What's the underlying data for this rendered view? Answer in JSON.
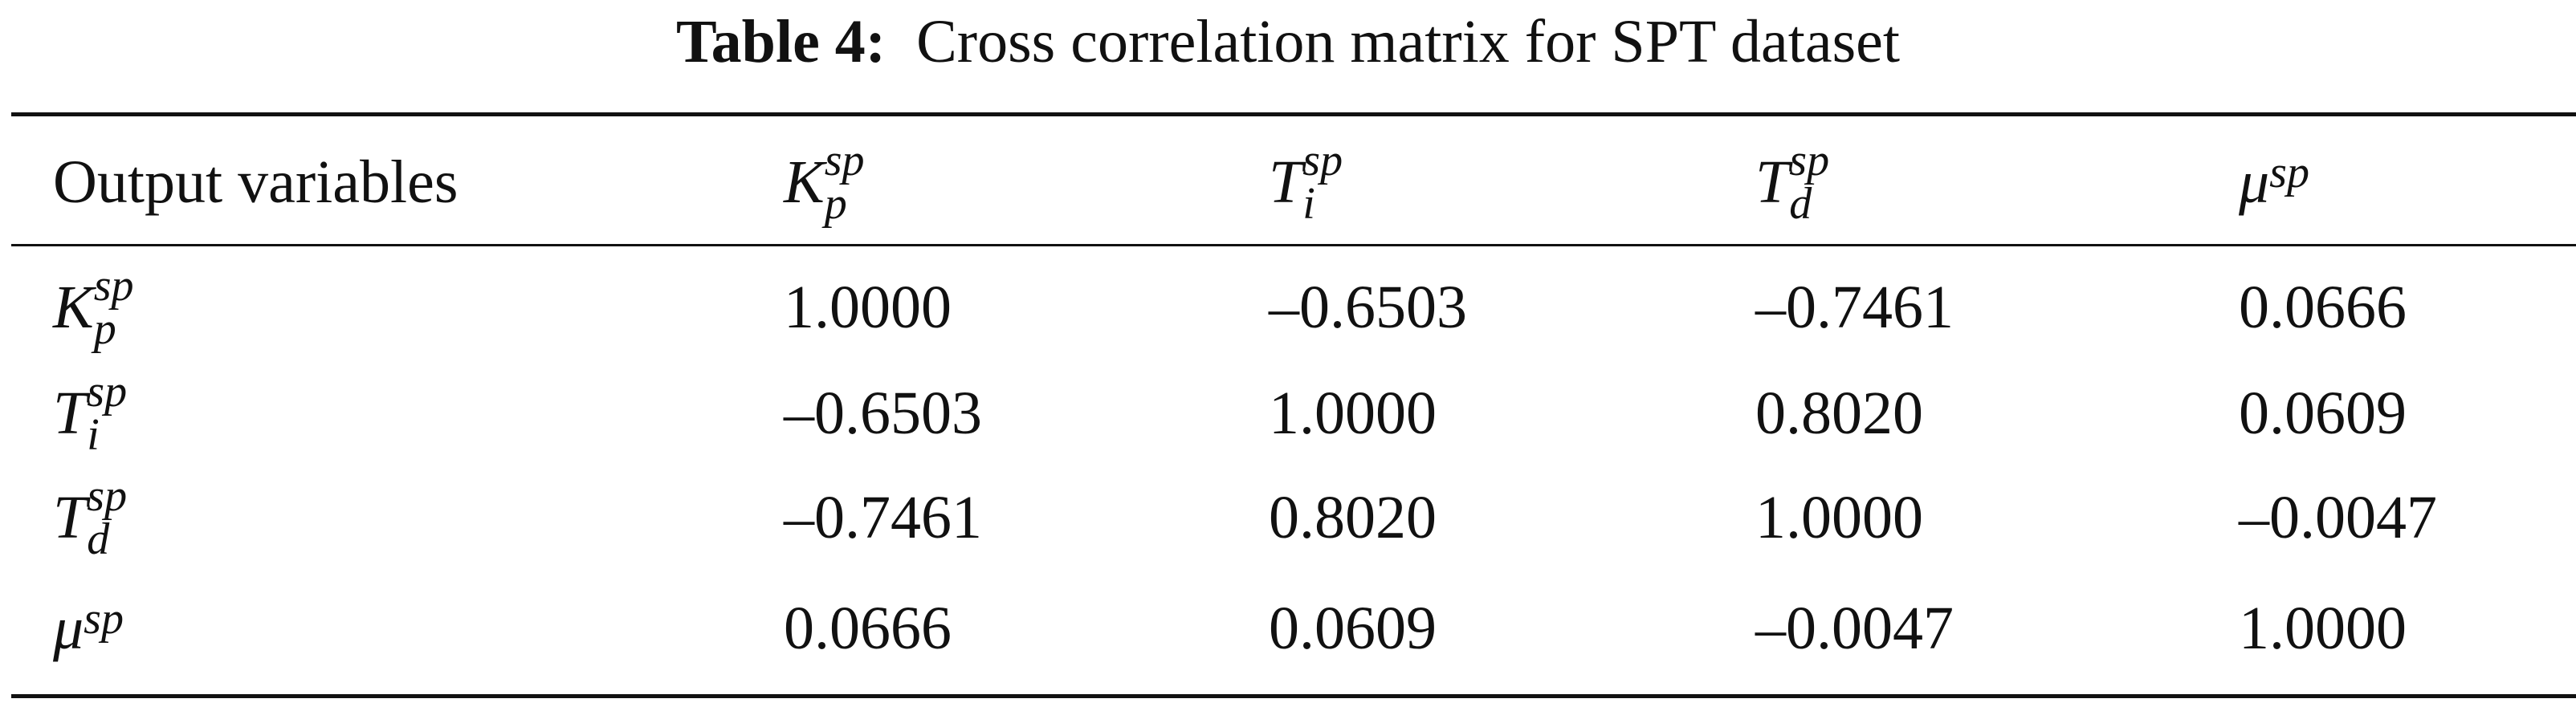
{
  "caption": {
    "label": "Table 4:",
    "text": "Cross correlation matrix for SPT dataset"
  },
  "table": {
    "header": {
      "first": "Output variables",
      "vars": [
        {
          "base": "K",
          "sup": "sp",
          "sub": "p"
        },
        {
          "base": "T",
          "sup": "sp",
          "sub": "i"
        },
        {
          "base": "T",
          "sup": "sp",
          "sub": "d"
        },
        {
          "base": "μ",
          "sup": "sp",
          "sub": ""
        }
      ]
    },
    "rows": [
      {
        "label": {
          "base": "K",
          "sup": "sp",
          "sub": "p"
        },
        "values": [
          "1.0000",
          "–0.6503",
          "–0.7461",
          "0.0666"
        ]
      },
      {
        "label": {
          "base": "T",
          "sup": "sp",
          "sub": "i"
        },
        "values": [
          "–0.6503",
          "1.0000",
          "0.8020",
          "0.0609"
        ]
      },
      {
        "label": {
          "base": "T",
          "sup": "sp",
          "sub": "d"
        },
        "values": [
          "–0.7461",
          "0.8020",
          "1.0000",
          "–0.0047"
        ]
      },
      {
        "label": {
          "base": "μ",
          "sup": "sp",
          "sub": ""
        },
        "values": [
          "0.0666",
          "0.0609",
          "–0.0047",
          "1.0000"
        ]
      }
    ]
  }
}
